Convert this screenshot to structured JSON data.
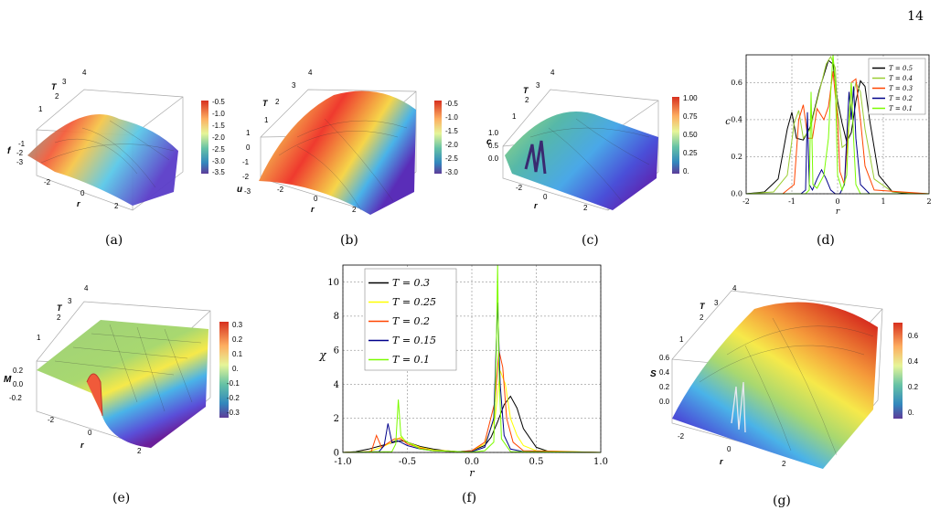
{
  "page_number": "14",
  "captions": {
    "a": "(a)",
    "b": "(b)",
    "c": "(c)",
    "d": "(d)",
    "e": "(e)",
    "f": "(f)",
    "g": "(g)"
  },
  "surface_panels": {
    "a": {
      "zlabel": "f",
      "zticks": [
        "-1",
        "-2",
        "-3"
      ],
      "r_ticks": [
        "-2",
        "0",
        "2"
      ],
      "T_ticks": [
        "1",
        "2",
        "3",
        "4"
      ],
      "colorbar": [
        "-0.5",
        "-1.0",
        "-1.5",
        "-2.0",
        "-2.5",
        "-3.0",
        "-3.5"
      ]
    },
    "b": {
      "zlabel": "u",
      "zticks": [
        "1",
        "0",
        "-1",
        "-2",
        "-3"
      ],
      "r_ticks": [
        "-2",
        "0",
        "2"
      ],
      "T_ticks": [
        "1",
        "2",
        "3",
        "4"
      ],
      "colorbar": [
        "-0.5",
        "-1.0",
        "-1.5",
        "-2.0",
        "-2.5",
        "-3.0"
      ]
    },
    "c": {
      "zlabel": "c",
      "zticks": [
        "1.0",
        "0.5",
        "0.0"
      ],
      "r_ticks": [
        "-2",
        "0",
        "2"
      ],
      "T_ticks": [
        "1",
        "2",
        "3",
        "4"
      ],
      "colorbar": [
        "1.00",
        "0.75",
        "0.50",
        "0.25",
        "0."
      ]
    },
    "e": {
      "zlabel": "M",
      "zticks": [
        "0.2",
        "0.0",
        "-0.2"
      ],
      "r_ticks": [
        "-2",
        "0",
        "2"
      ],
      "T_ticks": [
        "1",
        "2",
        "3",
        "4"
      ],
      "colorbar": [
        "0.3",
        "0.2",
        "0.1",
        "0.",
        "-0.1",
        "-0.2",
        "-0.3"
      ]
    },
    "g": {
      "zlabel": "S",
      "zticks": [
        "0.6",
        "0.4",
        "0.2",
        "0.0"
      ],
      "r_ticks": [
        "-2",
        "0",
        "2"
      ],
      "T_ticks": [
        "1",
        "2",
        "3",
        "4"
      ],
      "colorbar": [
        "0.6",
        "0.4",
        "0.2",
        "0."
      ]
    }
  },
  "axis_T_label": "T",
  "axis_r_label": "r",
  "chart_data": [
    {
      "type": "line",
      "panel": "d",
      "xlabel": "r",
      "ylabel": "c",
      "xlim": [
        -2,
        2
      ],
      "ylim": [
        0,
        0.75
      ],
      "xticks": [
        "-2",
        "-1",
        "0",
        "1",
        "2"
      ],
      "yticks": [
        "0.0",
        "0.2",
        "0.4",
        "0.6"
      ],
      "grid": true,
      "legend_position": "top-right",
      "series": [
        {
          "name": "T = 0.5",
          "color": "#000000",
          "x": [
            -2,
            -1.6,
            -1.3,
            -1.1,
            -1.0,
            -0.9,
            -0.75,
            -0.6,
            -0.4,
            -0.2,
            -0.1,
            0.0,
            0.1,
            0.2,
            0.3,
            0.4,
            0.5,
            0.6,
            0.7,
            0.9,
            1.2,
            1.6,
            2
          ],
          "y": [
            0,
            0.01,
            0.08,
            0.35,
            0.44,
            0.3,
            0.29,
            0.36,
            0.56,
            0.72,
            0.7,
            0.5,
            0.38,
            0.28,
            0.33,
            0.5,
            0.61,
            0.58,
            0.4,
            0.1,
            0.01,
            0,
            0
          ]
        },
        {
          "name": "T = 0.4",
          "color": "#9acd32",
          "x": [
            -2,
            -1.4,
            -1.1,
            -0.95,
            -0.85,
            -0.75,
            -0.6,
            -0.4,
            -0.25,
            -0.15,
            -0.05,
            0.0,
            0.1,
            0.2,
            0.3,
            0.4,
            0.5,
            0.6,
            0.8,
            1.2,
            2
          ],
          "y": [
            0,
            0.01,
            0.1,
            0.38,
            0.45,
            0.3,
            0.35,
            0.55,
            0.7,
            0.74,
            0.68,
            0.45,
            0.25,
            0.27,
            0.48,
            0.6,
            0.55,
            0.35,
            0.08,
            0.01,
            0
          ]
        },
        {
          "name": "T = 0.3",
          "color": "#ff4500",
          "x": [
            -2,
            -1.2,
            -0.95,
            -0.85,
            -0.75,
            -0.65,
            -0.55,
            -0.45,
            -0.3,
            -0.2,
            -0.1,
            0.0,
            0.05,
            0.15,
            0.25,
            0.3,
            0.4,
            0.5,
            0.6,
            0.8,
            2
          ],
          "y": [
            0,
            0.0,
            0.05,
            0.4,
            0.48,
            0.3,
            0.3,
            0.46,
            0.4,
            0.47,
            0.66,
            0.4,
            0.12,
            0.05,
            0.4,
            0.6,
            0.62,
            0.4,
            0.15,
            0.02,
            0
          ]
        },
        {
          "name": "T = 0.2",
          "color": "#00008b",
          "x": [
            -2,
            -0.8,
            -0.7,
            -0.66,
            -0.62,
            -0.55,
            -0.45,
            -0.35,
            -0.25,
            -0.15,
            -0.05,
            0.05,
            0.15,
            0.2,
            0.25,
            0.3,
            0.35,
            0.4,
            0.5,
            0.7,
            2
          ],
          "y": [
            0,
            0.0,
            0.02,
            0.44,
            0.05,
            0.02,
            0.08,
            0.13,
            0.08,
            0.02,
            0.0,
            0.0,
            0.05,
            0.3,
            0.55,
            0.4,
            0.58,
            0.3,
            0.05,
            0.0,
            0
          ]
        },
        {
          "name": "T = 0.1",
          "color": "#7cfc00",
          "x": [
            -2,
            -0.7,
            -0.62,
            -0.58,
            -0.54,
            -0.45,
            -0.3,
            -0.2,
            -0.15,
            -0.1,
            -0.05,
            0.0,
            0.1,
            0.2,
            0.25,
            0.3,
            0.35,
            0.4,
            0.5,
            2
          ],
          "y": [
            0,
            0.0,
            0.02,
            0.55,
            0.05,
            0.03,
            0.1,
            0.3,
            0.55,
            0.75,
            0.6,
            0.1,
            0.02,
            0.1,
            0.4,
            0.6,
            0.3,
            0.05,
            0.0,
            0
          ]
        }
      ]
    },
    {
      "type": "line",
      "panel": "f",
      "xlabel": "r",
      "ylabel": "χ",
      "xlim": [
        -1,
        1
      ],
      "ylim": [
        0,
        11
      ],
      "xticks": [
        "-1.0",
        "-0.5",
        "0.0",
        "0.5",
        "1.0"
      ],
      "yticks": [
        "0",
        "2",
        "4",
        "6",
        "8",
        "10"
      ],
      "grid": true,
      "legend_position": "top-left",
      "series": [
        {
          "name": "T = 0.3",
          "color": "#000000",
          "x": [
            -1,
            -0.9,
            -0.8,
            -0.7,
            -0.6,
            -0.55,
            -0.5,
            -0.4,
            -0.3,
            -0.2,
            -0.1,
            0,
            0.1,
            0.15,
            0.2,
            0.25,
            0.3,
            0.35,
            0.4,
            0.5,
            0.6,
            1
          ],
          "y": [
            0,
            0.05,
            0.2,
            0.4,
            0.6,
            0.7,
            0.6,
            0.35,
            0.2,
            0.1,
            0.05,
            0.1,
            0.4,
            0.9,
            1.8,
            2.8,
            3.3,
            2.6,
            1.4,
            0.3,
            0.05,
            0
          ]
        },
        {
          "name": "T = 0.25",
          "color": "#ffff00",
          "x": [
            -1,
            -0.8,
            -0.7,
            -0.62,
            -0.55,
            -0.5,
            -0.4,
            -0.3,
            -0.2,
            -0.1,
            0,
            0.1,
            0.18,
            0.22,
            0.26,
            0.3,
            0.35,
            0.4,
            0.5,
            1
          ],
          "y": [
            0,
            0.05,
            0.3,
            0.6,
            0.9,
            0.6,
            0.3,
            0.15,
            0.1,
            0.05,
            0.1,
            0.5,
            2.0,
            4.8,
            4.0,
            2.0,
            1.0,
            0.4,
            0.1,
            0
          ]
        },
        {
          "name": "T = 0.2",
          "color": "#ff4500",
          "x": [
            -1,
            -0.78,
            -0.74,
            -0.7,
            -0.66,
            -0.6,
            -0.55,
            -0.5,
            -0.4,
            -0.3,
            -0.1,
            0,
            0.1,
            0.18,
            0.21,
            0.24,
            0.27,
            0.32,
            0.4,
            1
          ],
          "y": [
            0,
            0.05,
            1.0,
            0.3,
            0.5,
            0.8,
            0.8,
            0.5,
            0.25,
            0.1,
            0.05,
            0.1,
            0.6,
            3.0,
            6.0,
            5.0,
            2.0,
            0.6,
            0.1,
            0
          ]
        },
        {
          "name": "T = 0.15",
          "color": "#00008b",
          "x": [
            -1,
            -0.72,
            -0.68,
            -0.65,
            -0.62,
            -0.58,
            -0.55,
            -0.5,
            -0.4,
            -0.3,
            -0.1,
            0,
            0.1,
            0.17,
            0.2,
            0.22,
            0.25,
            0.3,
            0.4,
            1
          ],
          "y": [
            0,
            0.05,
            0.4,
            1.7,
            0.6,
            0.7,
            0.6,
            0.4,
            0.2,
            0.1,
            0.05,
            0.05,
            0.3,
            2.0,
            8.8,
            4.0,
            1.0,
            0.2,
            0.05,
            0
          ]
        },
        {
          "name": "T = 0.1",
          "color": "#7cfc00",
          "x": [
            -1,
            -0.62,
            -0.59,
            -0.57,
            -0.55,
            -0.52,
            -0.5,
            -0.45,
            -0.4,
            -0.3,
            -0.1,
            0,
            0.1,
            0.17,
            0.19,
            0.2,
            0.21,
            0.23,
            0.3,
            1
          ],
          "y": [
            0,
            0.05,
            0.5,
            3.1,
            1.0,
            0.7,
            0.6,
            0.4,
            0.2,
            0.1,
            0.05,
            0.02,
            0.1,
            0.6,
            6.0,
            11.2,
            5.0,
            0.8,
            0.05,
            0
          ]
        }
      ]
    }
  ]
}
